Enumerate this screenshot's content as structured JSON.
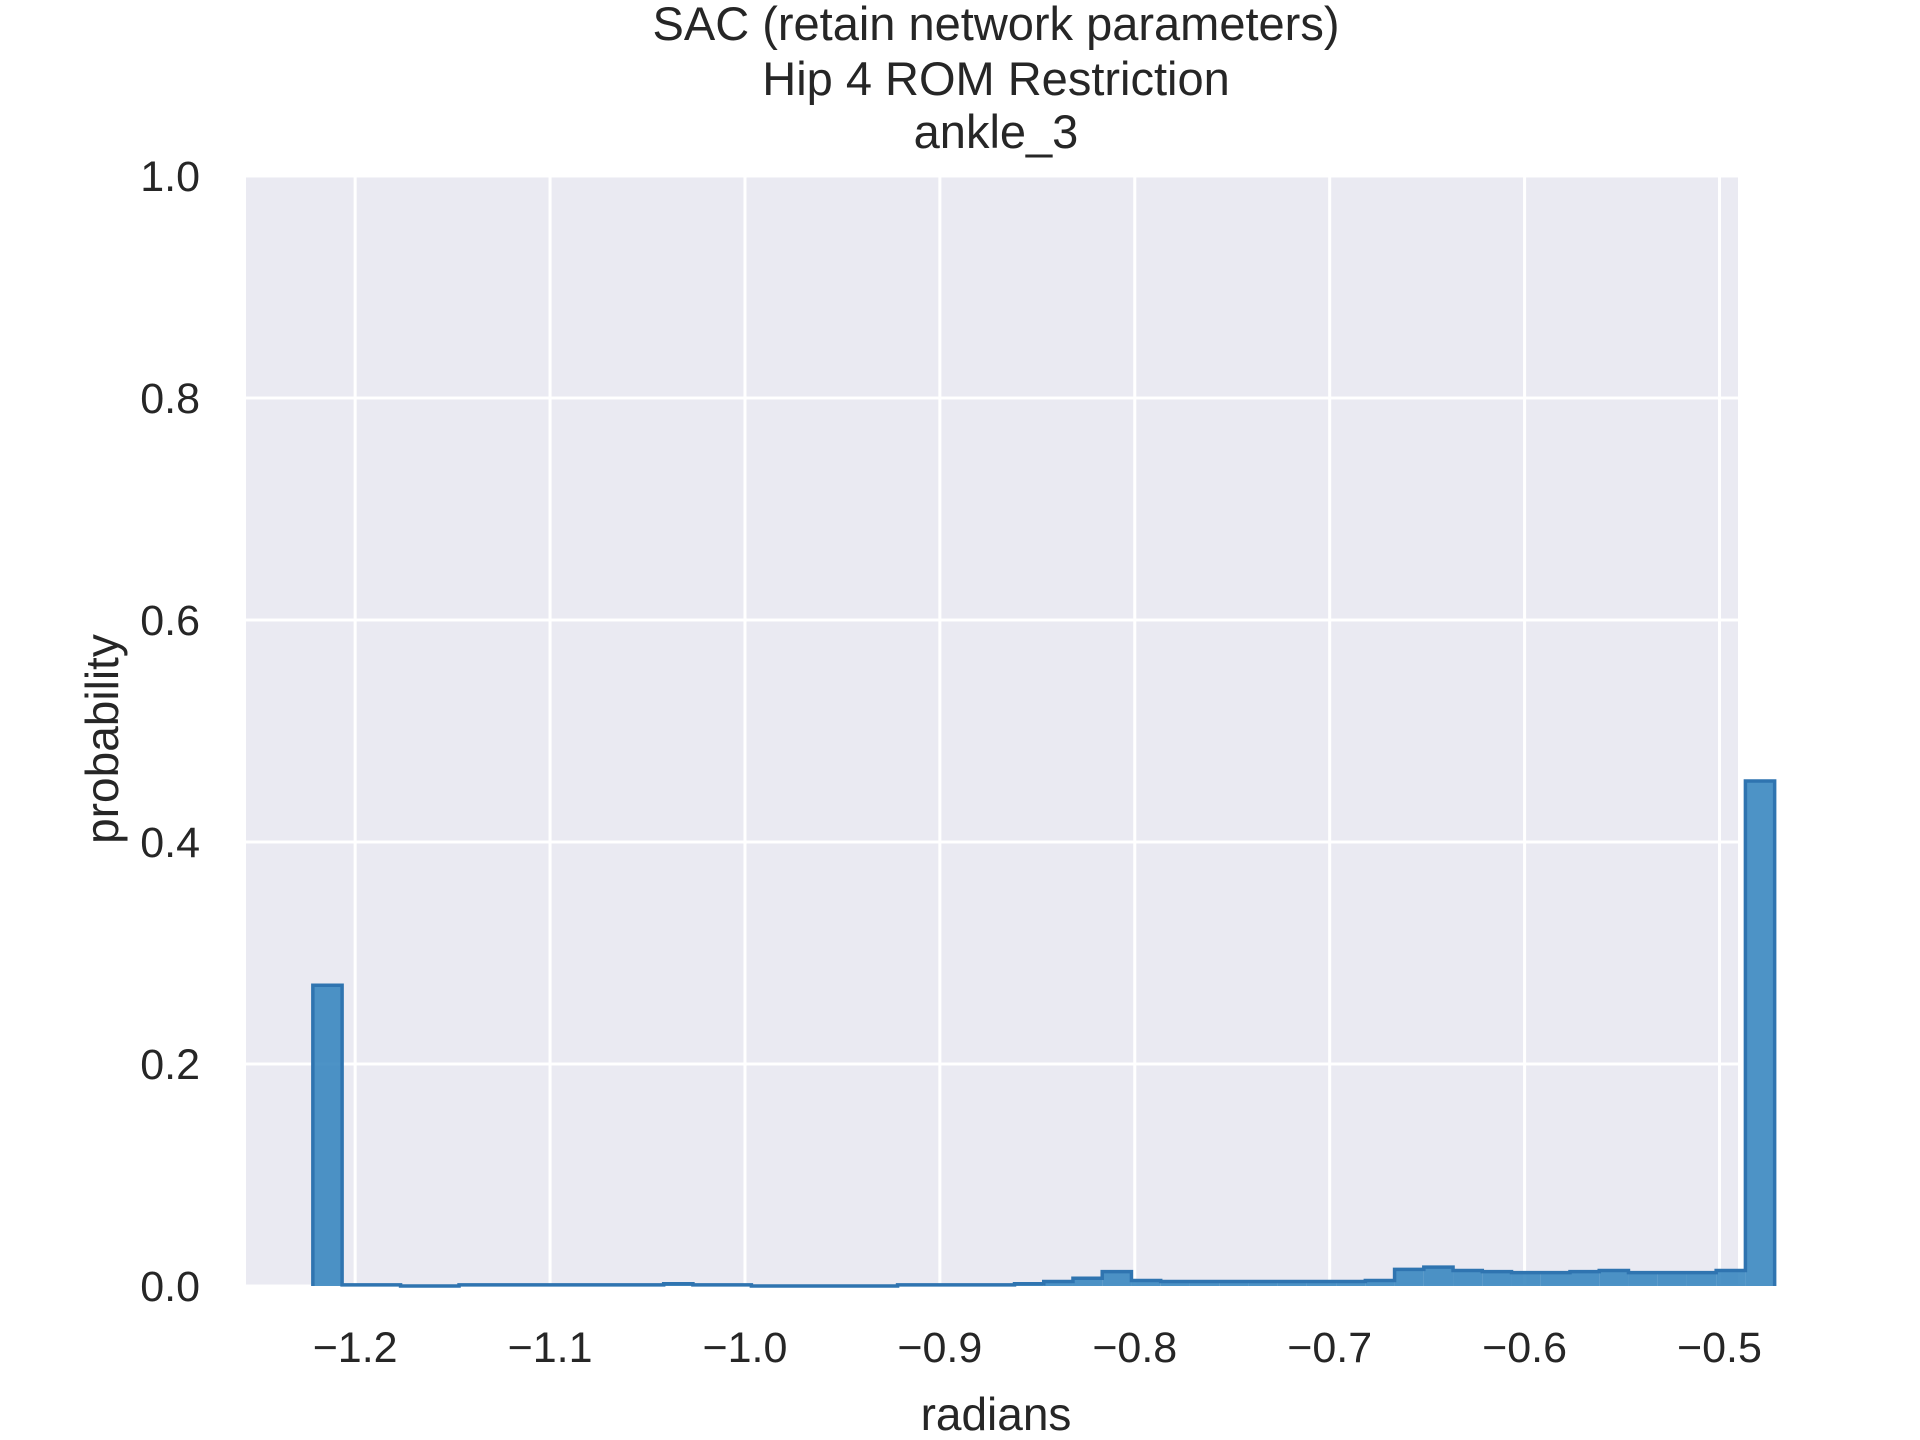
{
  "chart_data": {
    "type": "histogram",
    "title": [
      "SAC (retain network parameters)",
      "Hip 4 ROM Restriction",
      "ankle_3"
    ],
    "xlabel": "radians",
    "ylabel": "probability",
    "xlim": [
      -1.256,
      -0.4905
    ],
    "ylim": [
      0,
      1
    ],
    "xticks": [
      -1.2,
      -1.1,
      -1.0,
      -0.9,
      -0.8,
      -0.7,
      -0.6,
      -0.5
    ],
    "xtick_labels": [
      "−1.2",
      "−1.1",
      "−1.0",
      "−0.9",
      "−0.8",
      "−0.7",
      "−0.6",
      "−0.5"
    ],
    "yticks": [
      0.0,
      0.2,
      0.4,
      0.6,
      0.8,
      1.0
    ],
    "ytick_labels": [
      "0.0",
      "0.2",
      "0.4",
      "0.6",
      "0.8",
      "1.0"
    ],
    "grid": true,
    "bin_start": -1.2217,
    "bin_width": 0.015,
    "values": [
      0.271,
      0.001,
      0.001,
      0.0,
      0.0,
      0.001,
      0.001,
      0.001,
      0.001,
      0.001,
      0.001,
      0.001,
      0.002,
      0.001,
      0.001,
      0.0,
      0.0,
      0.0,
      0.0,
      0.0,
      0.001,
      0.001,
      0.001,
      0.001,
      0.002,
      0.004,
      0.007,
      0.013,
      0.005,
      0.004,
      0.004,
      0.004,
      0.004,
      0.004,
      0.004,
      0.004,
      0.005,
      0.015,
      0.017,
      0.014,
      0.013,
      0.012,
      0.012,
      0.013,
      0.014,
      0.012,
      0.012,
      0.012,
      0.014,
      0.455
    ],
    "colors": {
      "background": "#eaeaf2",
      "grid": "#ffffff",
      "fill": "#3a87c0",
      "edge": "#2f74b0"
    }
  }
}
